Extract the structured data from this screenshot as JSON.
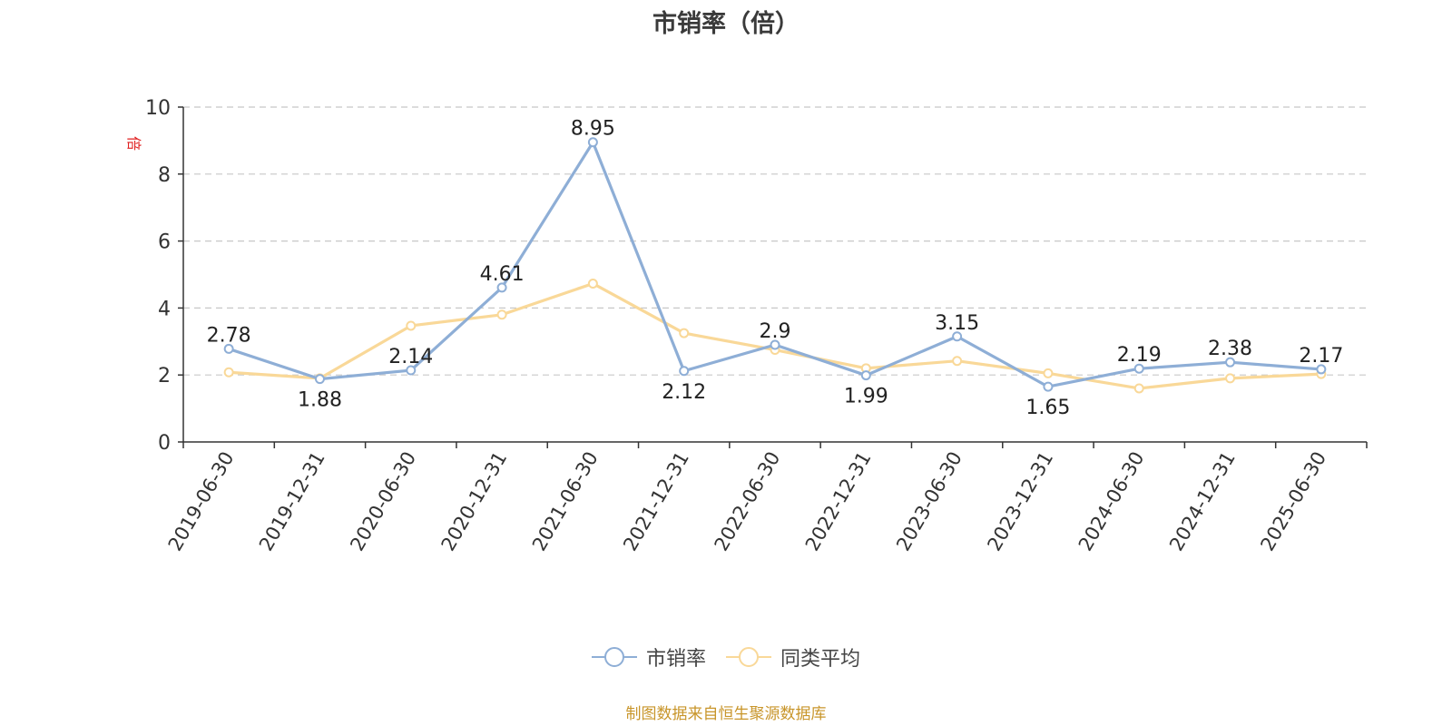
{
  "chart_data": {
    "type": "line",
    "title": "市销率（倍）",
    "ylabel": "倍",
    "xlabel": "",
    "ylim": [
      0,
      10
    ],
    "yticks": [
      0,
      2,
      4,
      6,
      8,
      10
    ],
    "grid": true,
    "legend_position": "bottom",
    "categories": [
      "2019-06-30",
      "2019-12-31",
      "2020-06-30",
      "2020-12-31",
      "2021-06-30",
      "2021-12-31",
      "2022-06-30",
      "2022-12-31",
      "2023-06-30",
      "2023-12-31",
      "2024-06-30",
      "2024-12-31",
      "2025-06-30"
    ],
    "series": [
      {
        "name": "市销率",
        "color": "#8eaed6",
        "show_labels": true,
        "values": [
          2.78,
          1.88,
          2.14,
          4.61,
          8.95,
          2.12,
          2.9,
          1.99,
          3.15,
          1.65,
          2.19,
          2.38,
          2.17
        ]
      },
      {
        "name": "同类平均",
        "color": "#f9d898",
        "show_labels": false,
        "values": [
          2.08,
          1.9,
          3.47,
          3.8,
          4.73,
          3.25,
          2.75,
          2.2,
          2.42,
          2.05,
          1.6,
          1.9,
          2.03
        ]
      }
    ]
  },
  "source_note": "制图数据来自恒生聚源数据库"
}
